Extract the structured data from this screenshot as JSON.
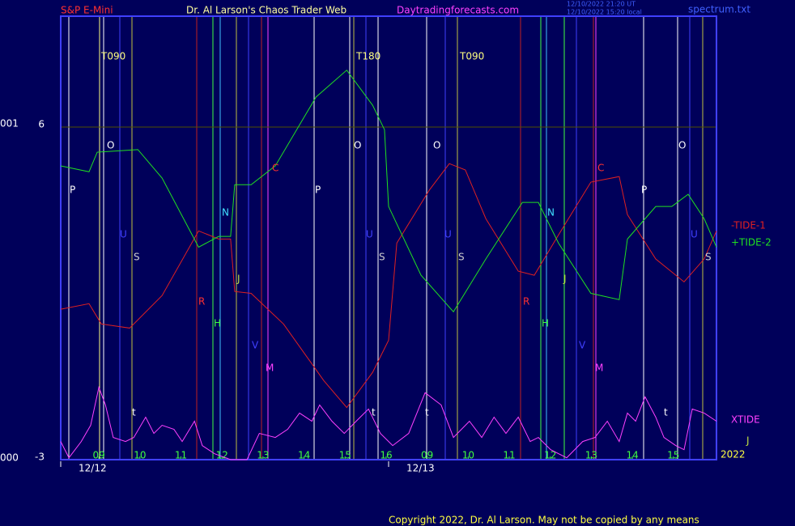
{
  "chart_data": {
    "type": "line",
    "title": "Dr. Al Larson's Chaos Trader Web",
    "subtitle": "S&P E-Mini",
    "site": "Daytradingforecasts.com",
    "file": "spectrum.txt",
    "timestamps": [
      "12/10/2022 21:20 UT",
      "12/10/2022 15:20 local"
    ],
    "left_labels": [
      "001",
      "000"
    ],
    "copyright": "Copyright 2022, Dr. Al Larson. May not be copied by any means",
    "xlim": [
      -0.93,
      15.05
    ],
    "ylim": [
      -3,
      9
    ],
    "yticks": [
      -3,
      6
    ],
    "grid": true,
    "xticks": [
      {
        "value": 0,
        "label": "09"
      },
      {
        "value": 1,
        "label": "10"
      },
      {
        "value": 2,
        "label": "11"
      },
      {
        "value": 3,
        "label": "12"
      },
      {
        "value": 4,
        "label": "13"
      },
      {
        "value": 5,
        "label": "14"
      },
      {
        "value": 6,
        "label": "15"
      },
      {
        "value": 7,
        "label": "16"
      },
      {
        "value": 8,
        "label": "09"
      },
      {
        "value": 9,
        "label": "10"
      },
      {
        "value": 10,
        "label": "11"
      },
      {
        "value": 11,
        "label": "12"
      },
      {
        "value": 12,
        "label": "13"
      },
      {
        "value": 13,
        "label": "14"
      },
      {
        "value": 14,
        "label": "15"
      }
    ],
    "date_ticks": [
      {
        "value": -0.93,
        "label": "12/12"
      },
      {
        "value": 7.06,
        "label": "12/13"
      }
    ],
    "series": [
      {
        "name": "-TIDE-1",
        "color": "#e02020",
        "x": [
          -0.93,
          -0.24,
          0.06,
          0.75,
          1.54,
          2.43,
          2.92,
          3.21,
          3.31,
          3.71,
          4.5,
          5.48,
          6.04,
          6.67,
          7.06,
          7.26,
          8.05,
          8.54,
          8.93,
          9.43,
          10.22,
          10.61,
          11.2,
          11.99,
          12.68,
          12.88,
          13.57,
          14.26,
          14.75,
          15.05
        ],
        "values": [
          1.07,
          1.22,
          0.67,
          0.56,
          1.44,
          3.19,
          2.97,
          2.97,
          1.55,
          1.5,
          0.67,
          -0.86,
          -1.59,
          -0.64,
          0.23,
          2.86,
          4.29,
          5.01,
          4.84,
          3.52,
          2.1,
          1.99,
          3.08,
          4.51,
          4.66,
          3.63,
          2.43,
          1.81,
          2.43,
          3.19
        ]
      },
      {
        "name": "+TIDE-2",
        "color": "#20e020",
        "x": [
          -0.93,
          -0.24,
          -0.04,
          0.95,
          1.54,
          2.43,
          2.92,
          3.21,
          3.31,
          3.71,
          4.3,
          5.29,
          6.04,
          6.67,
          6.96,
          7.06,
          7.85,
          8.64,
          9.43,
          10.32,
          10.71,
          11.2,
          11.99,
          12.68,
          12.88,
          13.57,
          13.96,
          14.36,
          14.75,
          15.05
        ],
        "values": [
          4.95,
          4.79,
          5.32,
          5.39,
          4.62,
          2.75,
          3.04,
          3.04,
          4.44,
          4.44,
          4.95,
          6.81,
          7.54,
          6.59,
          5.93,
          3.85,
          1.99,
          1.0,
          2.43,
          3.96,
          3.96,
          2.86,
          1.5,
          1.33,
          2.97,
          3.85,
          3.85,
          4.18,
          3.52,
          2.75
        ]
      },
      {
        "name": "XTIDE",
        "color": "#ff40ff",
        "x": [
          -0.93,
          -0.73,
          -0.43,
          -0.2,
          0,
          0.16,
          0.35,
          0.65,
          0.85,
          1.14,
          1.34,
          1.54,
          1.83,
          2.03,
          2.33,
          2.52,
          2.82,
          3.21,
          3.61,
          3.91,
          4.3,
          4.6,
          4.89,
          5.19,
          5.38,
          5.68,
          5.98,
          6.27,
          6.57,
          6.86,
          7.16,
          7.55,
          7.95,
          8.34,
          8.64,
          9.03,
          9.33,
          9.63,
          9.92,
          10.22,
          10.51,
          10.71,
          11.01,
          11.4,
          11.79,
          12.09,
          12.39,
          12.68,
          12.88,
          13.08,
          13.31,
          13.57,
          13.77,
          14.06,
          14.26,
          14.46,
          14.75,
          15.05
        ],
        "values": [
          -2.51,
          -2.95,
          -2.51,
          -2.07,
          -1.04,
          -1.52,
          -2.4,
          -2.51,
          -2.4,
          -1.85,
          -2.29,
          -2.07,
          -2.18,
          -2.51,
          -1.96,
          -2.62,
          -2.84,
          -3.0,
          -3.0,
          -2.29,
          -2.4,
          -2.18,
          -1.74,
          -1.96,
          -1.52,
          -1.96,
          -2.29,
          -1.96,
          -1.63,
          -2.29,
          -2.62,
          -2.29,
          -1.19,
          -1.52,
          -2.4,
          -1.96,
          -2.4,
          -1.85,
          -2.29,
          -1.85,
          -2.51,
          -2.4,
          -2.73,
          -2.95,
          -2.51,
          -2.4,
          -1.96,
          -2.51,
          -1.74,
          -1.96,
          -1.3,
          -1.85,
          -2.4,
          -2.62,
          -2.73,
          -1.63,
          -1.74,
          -1.96
        ]
      }
    ],
    "legend_extra": [
      "J",
      "2022"
    ],
    "annotations": [
      "T090",
      "T180",
      "T090",
      "O",
      "O",
      "O",
      "O",
      "P",
      "P",
      "P",
      "C",
      "C",
      "N",
      "N",
      "U",
      "U",
      "U",
      "U",
      "S",
      "S",
      "S",
      "S",
      "J",
      "J",
      "R",
      "R",
      "H",
      "H",
      "V",
      "V",
      "M",
      "M",
      "t",
      "t",
      "t",
      "t"
    ]
  }
}
